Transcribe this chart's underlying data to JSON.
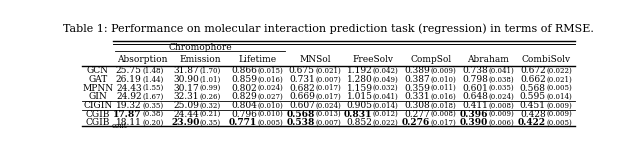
{
  "title": "Table 1: Performance on molecular interaction prediction task (regression) in terms of RMSE.",
  "rows": [
    {
      "name": "GCN",
      "sub": "",
      "values": [
        "25.75",
        "1.48",
        "31.87",
        "1.70",
        "0.866",
        "0.015",
        "0.675",
        "0.021",
        "1.192",
        "0.042",
        "0.389",
        "0.009",
        "0.738",
        "0.041",
        "0.672",
        "0.022"
      ]
    },
    {
      "name": "GAT",
      "sub": "",
      "values": [
        "26.19",
        "1.44",
        "30.90",
        "1.01",
        "0.859",
        "0.016",
        "0.731",
        "0.007",
        "1.280",
        "0.049",
        "0.387",
        "0.010",
        "0.798",
        "0.038",
        "0.662",
        "0.021"
      ]
    },
    {
      "name": "MPNN",
      "sub": "",
      "values": [
        "24.43",
        "1.55",
        "30.17",
        "0.99",
        "0.802",
        "0.024",
        "0.682",
        "0.017",
        "1.159",
        "0.032",
        "0.359",
        "0.011",
        "0.601",
        "0.035",
        "0.568",
        "0.005"
      ]
    },
    {
      "name": "GIN",
      "sub": "",
      "values": [
        "24.92",
        "1.67",
        "32.31",
        "0.26",
        "0.829",
        "0.027",
        "0.669",
        "0.017",
        "1.015",
        "0.041",
        "0.331",
        "0.016",
        "0.648",
        "0.024",
        "0.595",
        "0.014"
      ]
    },
    {
      "name": "CIGIN",
      "sub": "",
      "values": [
        "19.32",
        "0.35",
        "25.09",
        "0.32",
        "0.804",
        "0.010",
        "0.607",
        "0.024",
        "0.905",
        "0.014",
        "0.308",
        "0.018",
        "0.411",
        "0.008",
        "0.451",
        "0.009"
      ]
    },
    {
      "name": "CGIB",
      "sub": "",
      "values": [
        "17.87",
        "0.38",
        "24.44",
        "0.21",
        "0.796",
        "0.010",
        "0.568",
        "0.013",
        "0.831",
        "0.012",
        "0.277",
        "0.008",
        "0.396",
        "0.009",
        "0.428",
        "0.009"
      ]
    },
    {
      "name": "CGIB",
      "sub": "cont",
      "values": [
        "18.11",
        "0.20",
        "23.90",
        "0.35",
        "0.771",
        "0.005",
        "0.538",
        "0.007",
        "0.852",
        "0.022",
        "0.276",
        "0.017",
        "0.390",
        "0.006",
        "0.422",
        "0.005"
      ]
    }
  ],
  "bold_cells": {
    "5": [
      0,
      3,
      4,
      6
    ],
    "6": [
      1,
      2,
      3,
      5,
      6,
      7
    ]
  },
  "separator_after": [
    3,
    4
  ],
  "font_size": 6.5,
  "std_font_size": 5.0,
  "title_font_size": 8.0
}
